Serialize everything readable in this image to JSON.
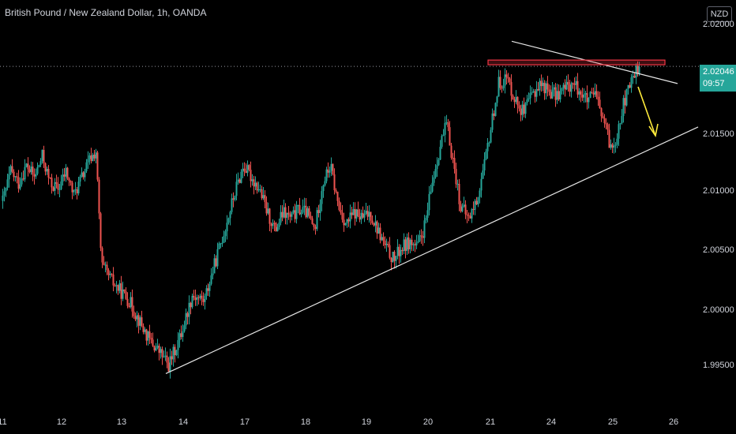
{
  "header": {
    "title": "British Pound / New Zealand Dollar, 1h, OANDA",
    "currency": "NZD"
  },
  "price_label": {
    "price": "2.02046",
    "countdown": "09:57"
  },
  "colors": {
    "up": "#26a69a",
    "down": "#ef5350",
    "trendline": "#e6e6e6",
    "resistance": "#f23645",
    "arrow": "#ffeb3b"
  },
  "chart_data": {
    "type": "candlestick",
    "title": "British Pound / New Zealand Dollar, 1h, OANDA",
    "ylim": [
      1.9935,
      2.0255
    ],
    "y_ticks": [
      "1.99500",
      "2.00000",
      "2.00500",
      "2.01000",
      "2.01500",
      "2.02000"
    ],
    "x_ticks": [
      "11",
      "12",
      "13",
      "14",
      "17",
      "18",
      "19",
      "20",
      "21",
      "24",
      "25",
      "26"
    ],
    "last_price": 2.02046,
    "close_path": [
      [
        0,
        2.009
      ],
      [
        10,
        2.0115
      ],
      [
        20,
        2.0105
      ],
      [
        30,
        2.012
      ],
      [
        40,
        2.011
      ],
      [
        50,
        2.0128
      ],
      [
        60,
        2.0105
      ],
      [
        70,
        2.01
      ],
      [
        80,
        2.0115
      ],
      [
        90,
        2.0095
      ],
      [
        100,
        2.011
      ],
      [
        110,
        2.0125
      ],
      [
        118,
        2.0132
      ],
      [
        125,
        2.0035
      ],
      [
        140,
        2.002
      ],
      [
        160,
        2.0005
      ],
      [
        175,
        1.9985
      ],
      [
        185,
        1.9972
      ],
      [
        200,
        1.996
      ],
      [
        210,
        1.995
      ],
      [
        225,
        1.9975
      ],
      [
        240,
        2.001
      ],
      [
        255,
        2.0005
      ],
      [
        270,
        2.004
      ],
      [
        285,
        2.0075
      ],
      [
        295,
        2.01
      ],
      [
        305,
        2.012
      ],
      [
        315,
        2.011
      ],
      [
        325,
        2.01
      ],
      [
        335,
        2.008
      ],
      [
        345,
        2.0065
      ],
      [
        355,
        2.008
      ],
      [
        365,
        2.0075
      ],
      [
        375,
        2.0083
      ],
      [
        385,
        2.008
      ],
      [
        395,
        2.0065
      ],
      [
        405,
        2.0105
      ],
      [
        415,
        2.012
      ],
      [
        425,
        2.0085
      ],
      [
        435,
        2.007
      ],
      [
        445,
        2.008
      ],
      [
        455,
        2.0075
      ],
      [
        465,
        2.008
      ],
      [
        475,
        2.0065
      ],
      [
        485,
        2.005
      ],
      [
        495,
        2.004
      ],
      [
        505,
        2.005
      ],
      [
        515,
        2.0055
      ],
      [
        525,
        2.005
      ],
      [
        535,
        2.007
      ],
      [
        545,
        2.011
      ],
      [
        555,
        2.014
      ],
      [
        562,
        2.0155
      ],
      [
        570,
        2.0125
      ],
      [
        580,
        2.0085
      ],
      [
        590,
        2.0075
      ],
      [
        600,
        2.009
      ],
      [
        610,
        2.012
      ],
      [
        620,
        2.016
      ],
      [
        628,
        2.019
      ],
      [
        638,
        2.0195
      ],
      [
        650,
        2.0175
      ],
      [
        660,
        2.0165
      ],
      [
        670,
        2.018
      ],
      [
        680,
        2.019
      ],
      [
        690,
        2.0185
      ],
      [
        700,
        2.018
      ],
      [
        710,
        2.0185
      ],
      [
        720,
        2.019
      ],
      [
        730,
        2.0185
      ],
      [
        740,
        2.0175
      ],
      [
        750,
        2.018
      ],
      [
        760,
        2.016
      ],
      [
        770,
        2.0135
      ],
      [
        775,
        2.014
      ],
      [
        785,
        2.017
      ],
      [
        795,
        2.019
      ],
      [
        800,
        2.02
      ],
      [
        806,
        2.0204
      ]
    ],
    "annotations": [
      {
        "type": "ascending-trendline",
        "from": {
          "x": "13",
          "y": 1.9943
        },
        "to": {
          "x": "26",
          "y": 2.0153
        }
      },
      {
        "type": "descending-trendline",
        "from": {
          "x": "21",
          "y": 2.0226
        },
        "to": {
          "x": "26",
          "y": 2.019
        }
      },
      {
        "type": "resistance-zone",
        "x_range": [
          "21",
          "25"
        ],
        "y_range": [
          2.0206,
          2.021
        ]
      },
      {
        "type": "arrow-down",
        "direction": "down"
      }
    ]
  }
}
